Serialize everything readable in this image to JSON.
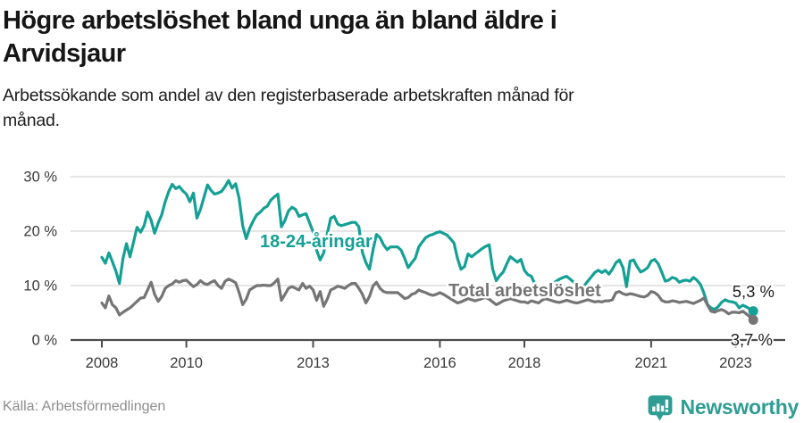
{
  "header": {
    "title_lines": [
      "Högre arbetslöshet bland unga än bland äldre i",
      "Arvidsjaur"
    ],
    "subtitle_lines": [
      "Arbetssökande som andel av den registerbaserade arbetskraften månad för",
      "månad."
    ]
  },
  "footer": {
    "source": "Källa: Arbetsförmedlingen",
    "brand": "Newsworthy"
  },
  "colors": {
    "accent_teal": "#14a094",
    "series_gray": "#757575",
    "grid": "#dcdcdc",
    "axis": "#4c4c4c",
    "text_dark": "#161616",
    "axis_text": "#3a3a3a",
    "source_text": "#8e8e8e",
    "logo_teal": "#2f9d93"
  },
  "chart_data": {
    "type": "line",
    "title": "Högre arbetslöshet bland unga än bland äldre i Arvidsjaur",
    "subtitle": "Arbetssökande som andel av den registerbaserade arbetskraften månad för månad.",
    "x_axis": {
      "unit": "month",
      "start_year": 2008,
      "end_point": "mid 2023",
      "tick_years": [
        2008,
        2010,
        2013,
        2016,
        2018,
        2021,
        2023
      ],
      "tick_labels": [
        "2008",
        "2010",
        "2013",
        "2016",
        "2018",
        "2021",
        "2023"
      ]
    },
    "y_axis": {
      "unit": "percent",
      "tick_values": [
        0,
        10,
        20,
        30
      ],
      "tick_labels": [
        "0 %",
        "10 %",
        "20 %",
        "30 %"
      ],
      "ylim": [
        0,
        32
      ],
      "grid": true
    },
    "legend_position": "inline-labels",
    "series": [
      {
        "name": "18-24-åringar",
        "color": "#14a094",
        "end_label": "5,3 %",
        "last_value": 5.3,
        "values": [
          15.2,
          14.1,
          16.0,
          14.4,
          12.6,
          10.4,
          15.0,
          17.7,
          15.3,
          18.0,
          20.7,
          19.8,
          21.0,
          23.5,
          22.0,
          19.6,
          21.5,
          23.0,
          25.4,
          27.3,
          28.6,
          27.8,
          28.2,
          27.4,
          26.8,
          25.4,
          27.0,
          22.4,
          24.0,
          26.2,
          28.5,
          27.5,
          26.8,
          27.0,
          27.3,
          28.2,
          29.3,
          27.9,
          28.7,
          26.0,
          21.0,
          18.6,
          20.5,
          21.9,
          23.0,
          23.5,
          24.2,
          24.6,
          25.7,
          26.3,
          26.8,
          20.8,
          22.0,
          23.7,
          24.4,
          24.0,
          22.7,
          23.0,
          23.2,
          21.5,
          19.9,
          16.5,
          14.7,
          16.0,
          19.5,
          22.4,
          22.7,
          21.3,
          21.0,
          21.2,
          21.4,
          21.6,
          21.6,
          20.8,
          16.1,
          14.2,
          13.0,
          16.5,
          19.4,
          18.8,
          17.5,
          16.6,
          17.1,
          17.1,
          17.1,
          16.5,
          15.0,
          13.3,
          14.2,
          15.0,
          17.1,
          18.0,
          18.8,
          19.2,
          19.4,
          19.7,
          19.9,
          19.6,
          19.3,
          18.6,
          17.8,
          15.0,
          13.0,
          13.5,
          15.8,
          15.3,
          15.8,
          16.3,
          16.8,
          17.2,
          17.5,
          13.0,
          10.9,
          11.8,
          12.5,
          14.0,
          15.3,
          14.8,
          14.3,
          14.8,
          12.8,
          12.0,
          11.7,
          10.2,
          8.8,
          8.0,
          8.4,
          9.2,
          10.2,
          10.8,
          11.2,
          11.5,
          11.7,
          11.2,
          10.6,
          10.0,
          9.6,
          10.0,
          10.8,
          11.6,
          12.4,
          12.8,
          12.4,
          12.8,
          12.1,
          13.0,
          14.2,
          14.7,
          13.3,
          9.8,
          14.5,
          14.7,
          13.5,
          12.5,
          12.8,
          13.3,
          14.5,
          14.8,
          14.0,
          12.5,
          10.8,
          11.0,
          11.5,
          11.3,
          10.6,
          10.9,
          11.0,
          10.8,
          11.5,
          11.0,
          10.2,
          8.6,
          6.5,
          5.9,
          5.6,
          6.1,
          6.9,
          7.4,
          7.1,
          7.0,
          6.8,
          5.9,
          6.4,
          6.1,
          5.7,
          5.3
        ]
      },
      {
        "name": "Total arbetslöshet",
        "color": "#757575",
        "end_label": "3,7 %",
        "last_value": 3.7,
        "values": [
          6.8,
          5.9,
          8.1,
          6.5,
          5.9,
          4.6,
          5.1,
          5.5,
          5.9,
          6.5,
          7.1,
          7.7,
          7.8,
          9.2,
          10.6,
          8.4,
          7.1,
          8.0,
          9.5,
          10.0,
          10.3,
          10.9,
          10.6,
          10.9,
          11.0,
          10.4,
          9.8,
          10.2,
          10.9,
          10.4,
          10.2,
          10.6,
          10.9,
          10.0,
          9.5,
          10.8,
          11.2,
          10.9,
          10.5,
          8.7,
          6.5,
          7.5,
          9.2,
          9.6,
          10.0,
          10.0,
          10.1,
          10.0,
          10.0,
          10.5,
          11.2,
          7.3,
          8.4,
          9.5,
          9.8,
          9.5,
          9.2,
          10.4,
          9.5,
          9.9,
          9.2,
          7.3,
          8.9,
          6.2,
          7.5,
          9.2,
          9.5,
          9.9,
          9.7,
          9.5,
          10.0,
          10.4,
          10.4,
          9.5,
          8.4,
          6.8,
          8.0,
          9.9,
          10.6,
          9.5,
          8.9,
          8.7,
          8.7,
          8.7,
          8.7,
          8.2,
          7.6,
          7.8,
          8.4,
          8.6,
          9.2,
          8.9,
          8.7,
          8.4,
          8.2,
          8.4,
          8.7,
          8.4,
          8.0,
          7.6,
          7.2,
          6.8,
          7.0,
          7.3,
          7.6,
          7.4,
          7.2,
          7.4,
          7.6,
          7.8,
          7.5,
          7.0,
          6.5,
          6.8,
          7.2,
          7.4,
          7.6,
          7.4,
          7.2,
          7.0,
          7.0,
          6.8,
          7.2,
          7.0,
          6.8,
          7.3,
          7.6,
          7.4,
          7.2,
          7.0,
          6.9,
          7.1,
          7.3,
          7.1,
          6.9,
          6.8,
          7.0,
          7.2,
          7.4,
          7.2,
          7.0,
          7.1,
          7.0,
          7.2,
          7.2,
          7.4,
          8.7,
          8.9,
          8.5,
          8.3,
          8.5,
          8.4,
          8.2,
          8.0,
          7.9,
          8.2,
          8.9,
          8.7,
          8.2,
          7.3,
          7.0,
          7.0,
          7.2,
          7.1,
          6.9,
          7.0,
          7.1,
          6.9,
          6.7,
          7.0,
          7.3,
          7.7,
          6.4,
          5.3,
          5.1,
          5.4,
          5.6,
          5.3,
          4.8,
          5.1,
          5.1,
          5.0,
          5.3,
          4.8,
          4.3,
          3.7
        ]
      }
    ]
  }
}
